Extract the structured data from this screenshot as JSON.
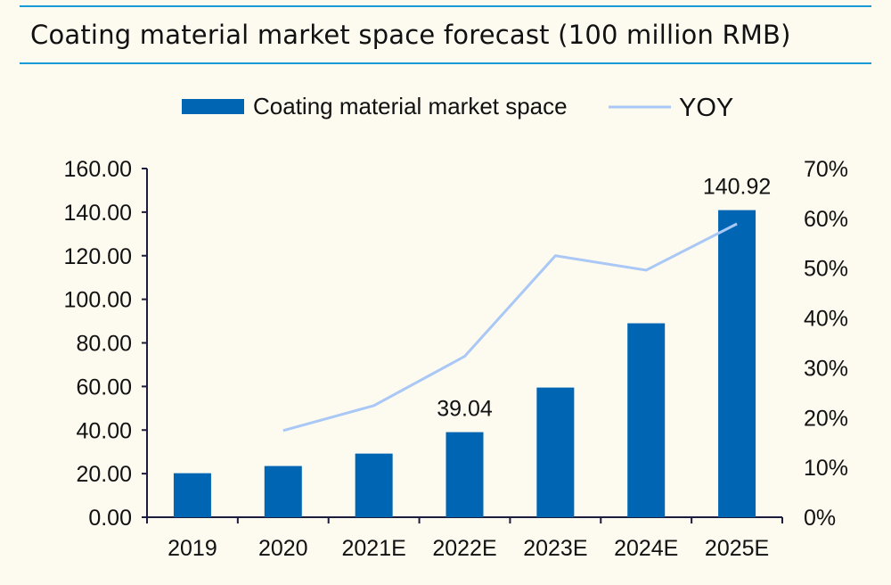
{
  "title": "Coating material market space forecast (100 million RMB)",
  "colors": {
    "bar": "#0066b3",
    "line": "#a9c8f5",
    "rule": "#1a9ad6",
    "background": "#fdfaf0"
  },
  "chart_data": {
    "type": "bar",
    "title": "Coating material market space forecast (100 million RMB)",
    "categories": [
      "2019",
      "2020",
      "2021E",
      "2022E",
      "2023E",
      "2024E",
      "2025E"
    ],
    "series": [
      {
        "name": "Coating material market space",
        "type": "bar",
        "axis": "left",
        "values": [
          20.2,
          23.5,
          29.2,
          39.04,
          59.5,
          89.0,
          140.92
        ]
      },
      {
        "name": "YOY",
        "type": "line",
        "axis": "right",
        "values": [
          null,
          0.174,
          0.224,
          0.323,
          0.525,
          0.496,
          0.589
        ]
      }
    ],
    "data_labels": [
      {
        "category": "2022E",
        "text": "39.04"
      },
      {
        "category": "2025E",
        "text": "140.92"
      }
    ],
    "ylim": [
      0,
      160
    ],
    "y_ticks": [
      "0.00",
      "20.00",
      "40.00",
      "60.00",
      "80.00",
      "100.00",
      "120.00",
      "140.00",
      "160.00"
    ],
    "y2lim": [
      0,
      0.7
    ],
    "y2_ticks": [
      "0%",
      "10%",
      "20%",
      "30%",
      "40%",
      "50%",
      "60%",
      "70%"
    ],
    "grid": false,
    "legend": "top"
  }
}
